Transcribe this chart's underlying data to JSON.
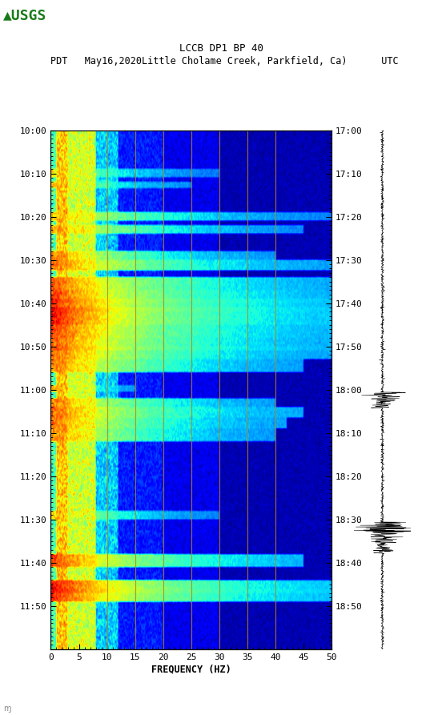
{
  "title_line1": "         LCCB DP1 BP 40",
  "title_line2": "PDT   May16,2020Little Cholame Creek, Parkfield, Ca)      UTC",
  "xlabel": "FREQUENCY (HZ)",
  "freq_min": 0,
  "freq_max": 50,
  "freq_ticks": [
    0,
    5,
    10,
    15,
    20,
    25,
    30,
    35,
    40,
    45,
    50
  ],
  "time_labels_left": [
    "10:00",
    "10:10",
    "10:20",
    "10:30",
    "10:40",
    "10:50",
    "11:00",
    "11:10",
    "11:20",
    "11:30",
    "11:40",
    "11:50"
  ],
  "time_labels_right": [
    "17:00",
    "17:10",
    "17:20",
    "17:30",
    "17:40",
    "17:50",
    "18:00",
    "18:10",
    "18:20",
    "18:30",
    "18:40",
    "18:50"
  ],
  "n_time_steps": 240,
  "n_freq_steps": 500,
  "vertical_lines_freq": [
    10,
    15,
    20,
    25,
    30,
    35,
    40
  ],
  "vertical_line_color": "#b8860b",
  "background_color": "#ffffff",
  "colormap": "jet",
  "fig_width": 5.52,
  "fig_height": 8.93,
  "dpi": 100
}
